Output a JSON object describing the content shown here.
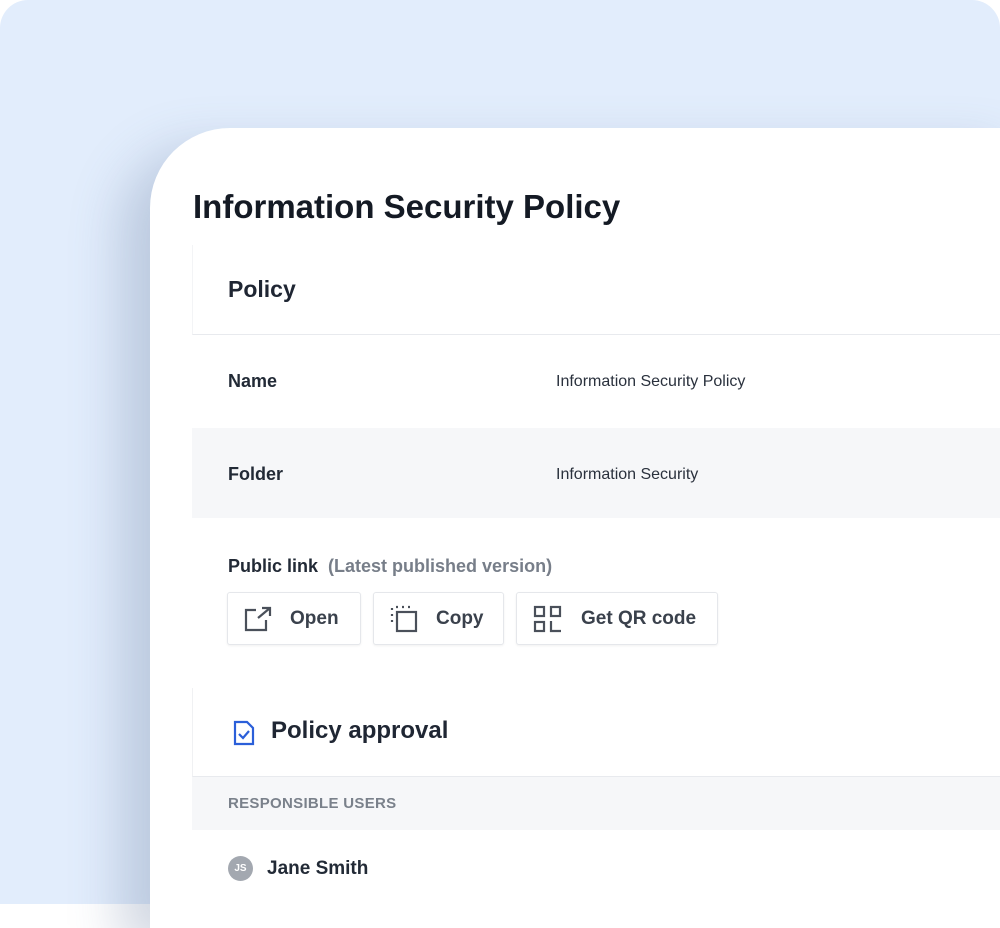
{
  "page_title": "Information Security Policy",
  "policy_section": {
    "heading": "Policy",
    "fields": [
      {
        "label": "Name",
        "value": "Information Security Policy"
      },
      {
        "label": "Folder",
        "value": "Information Security"
      }
    ]
  },
  "public_link": {
    "label": "Public link",
    "note": "(Latest published version)",
    "buttons": [
      {
        "label": "Open",
        "icon": "external-link-icon"
      },
      {
        "label": "Copy",
        "icon": "copy-icon"
      },
      {
        "label": "Get QR code",
        "icon": "qr-code-icon"
      }
    ]
  },
  "approval": {
    "heading": "Policy approval",
    "icon": "document-check-icon",
    "accent": "#2b5fd9",
    "column_header": "RESPONSIBLE USERS",
    "users": [
      {
        "initials": "JS",
        "name": "Jane Smith"
      }
    ]
  }
}
